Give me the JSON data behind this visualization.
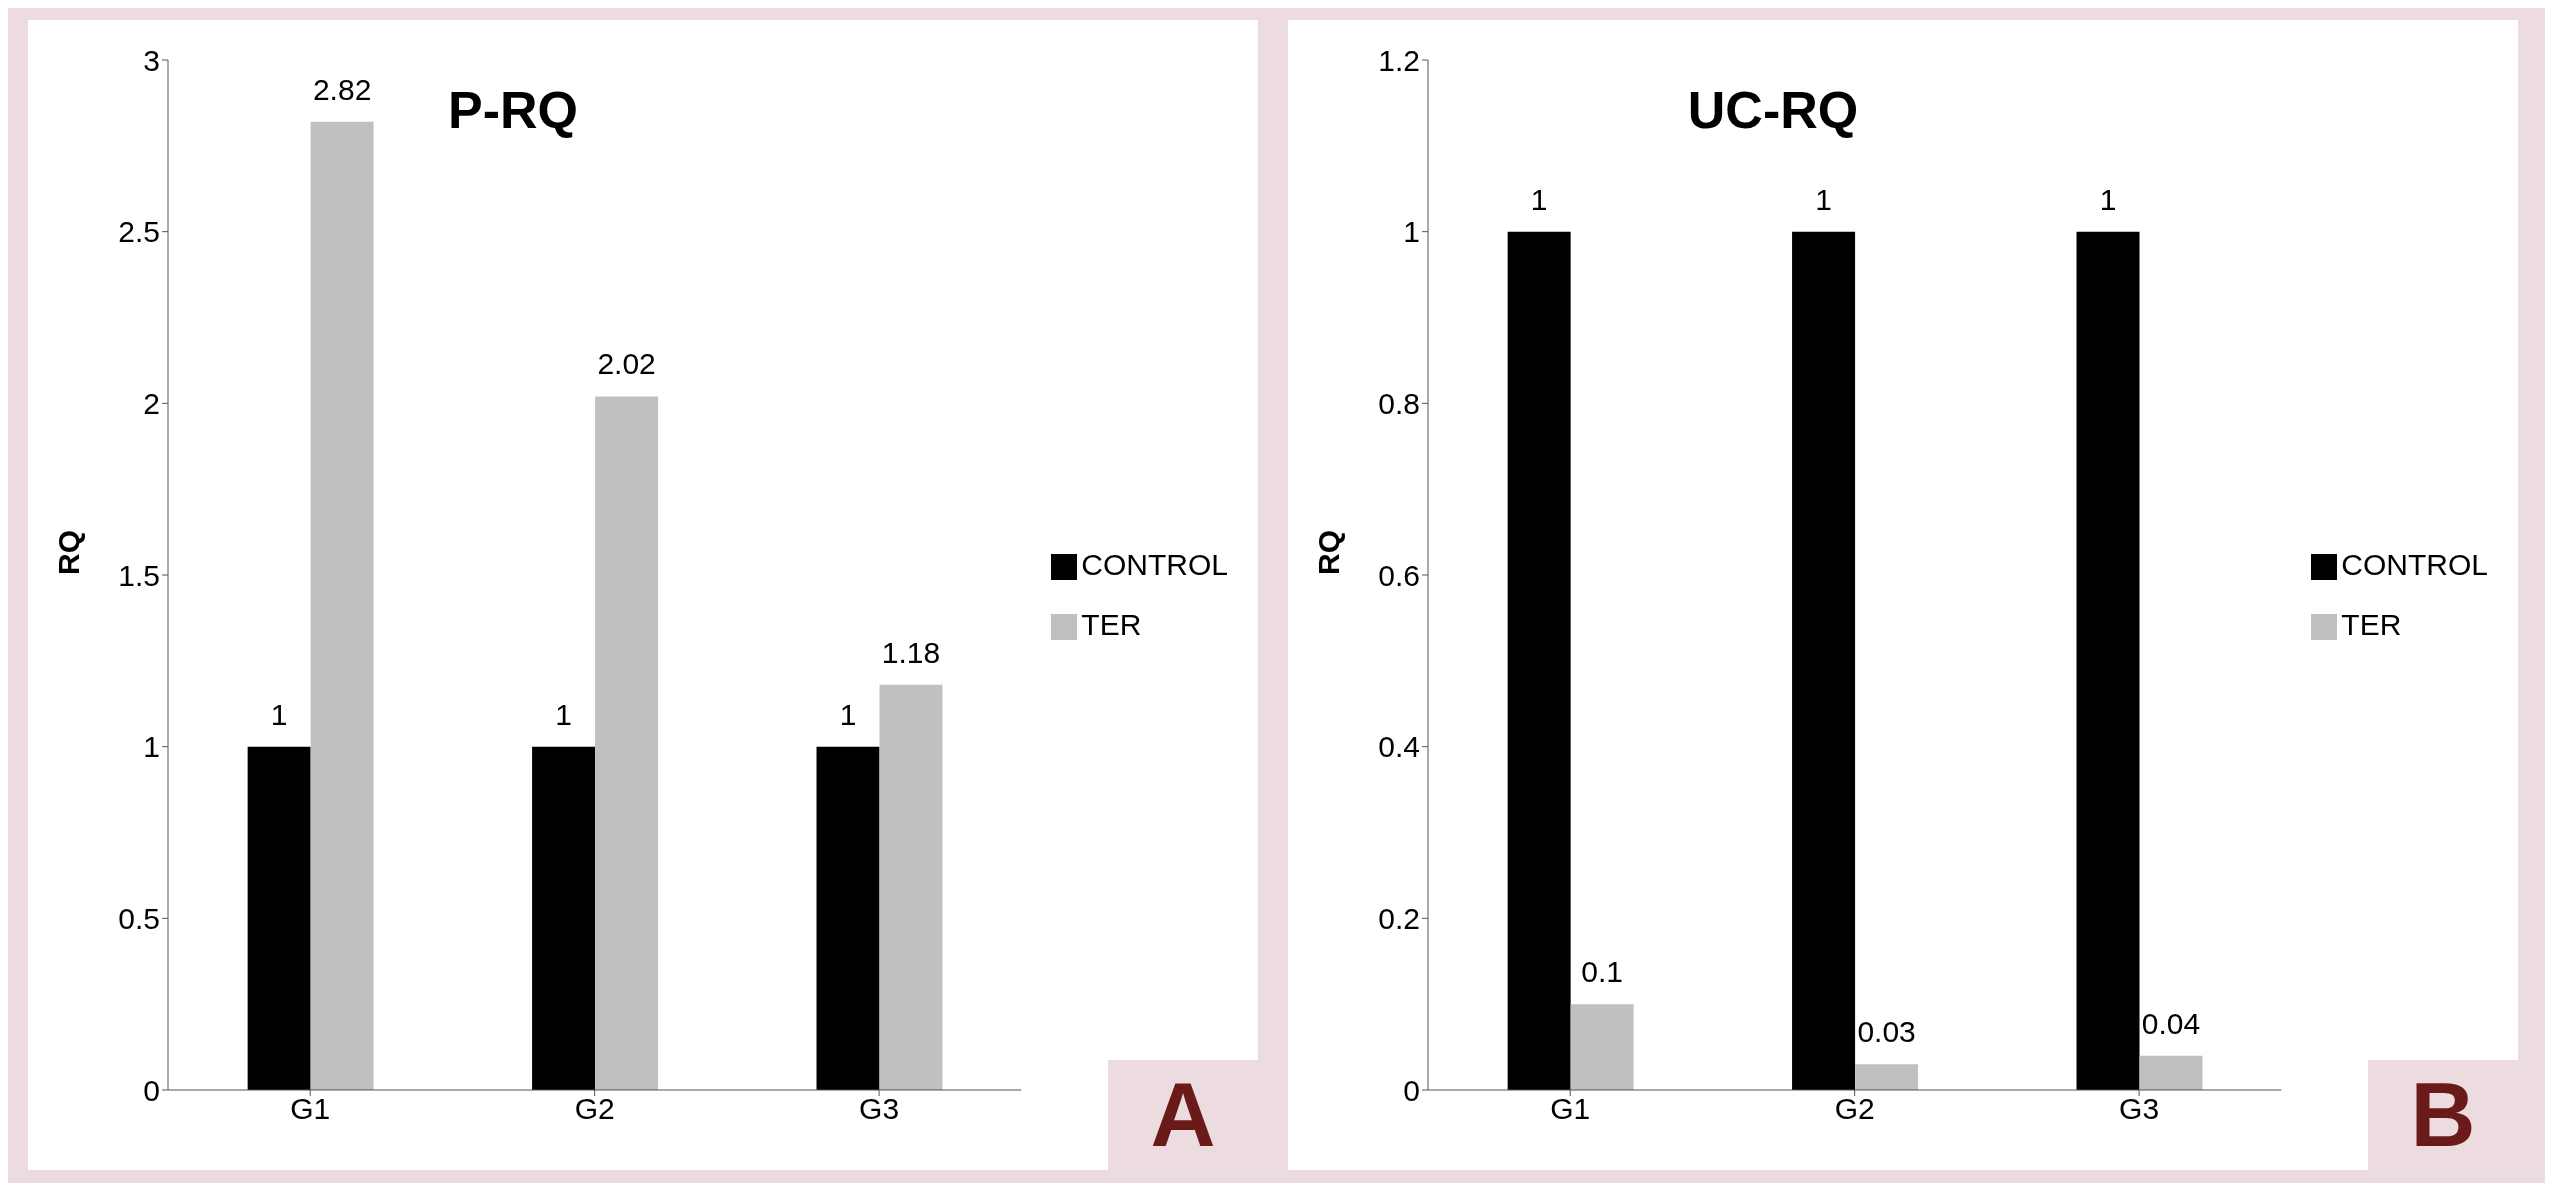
{
  "chart_data": [
    {
      "type": "bar",
      "title": "P-RQ",
      "ylabel": "RQ",
      "categories": [
        "G1",
        "G2",
        "G3"
      ],
      "series": [
        {
          "name": "CONTROL",
          "color": "#000000",
          "values": [
            1,
            1,
            1
          ]
        },
        {
          "name": "TER",
          "color": "#c0c0c0",
          "values": [
            2.82,
            2.02,
            1.18
          ]
        }
      ],
      "ylim": [
        0,
        3
      ],
      "yticks": [
        0,
        0.5,
        1,
        1.5,
        2,
        2.5,
        3
      ],
      "grid": false,
      "legend": "right",
      "data_labels": true,
      "annotations": [
        "A"
      ]
    },
    {
      "type": "bar",
      "title": "UC-RQ",
      "ylabel": "RQ",
      "categories": [
        "G1",
        "G2",
        "G3"
      ],
      "series": [
        {
          "name": "CONTROL",
          "color": "#000000",
          "values": [
            1,
            1,
            1
          ]
        },
        {
          "name": "TER",
          "color": "#c0c0c0",
          "values": [
            0.1,
            0.03,
            0.04
          ]
        }
      ],
      "ylim": [
        0,
        1.2
      ],
      "yticks": [
        0,
        0.2,
        0.4,
        0.6,
        0.8,
        1,
        1.2
      ],
      "grid": false,
      "legend": "right",
      "data_labels": true,
      "annotations": [
        "B"
      ]
    }
  ]
}
